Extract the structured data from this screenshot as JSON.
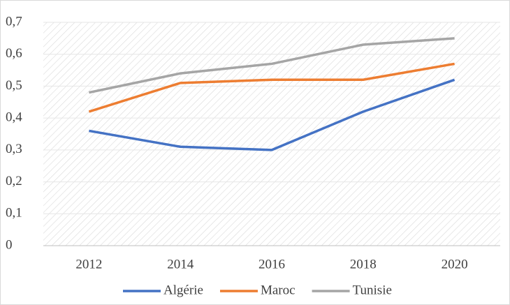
{
  "chart_data": {
    "type": "line",
    "categories": [
      "2012",
      "2014",
      "2016",
      "2018",
      "2020"
    ],
    "series": [
      {
        "name": "Algérie",
        "color": "#4472c4",
        "values": [
          0.36,
          0.31,
          0.3,
          0.42,
          0.52
        ]
      },
      {
        "name": "Maroc",
        "color": "#ed7d31",
        "values": [
          0.42,
          0.51,
          0.52,
          0.52,
          0.57
        ]
      },
      {
        "name": "Tunisie",
        "color": "#a5a5a5",
        "values": [
          0.48,
          0.54,
          0.57,
          0.63,
          0.65
        ]
      }
    ],
    "ylim": [
      0,
      0.7
    ],
    "yticks": [
      0,
      {
        "value": 0.1,
        "label": "0,1"
      },
      {
        "value": 0.2,
        "label": "0,2"
      },
      {
        "value": 0.3,
        "label": "0,3"
      },
      {
        "value": 0.4,
        "label": "0,4"
      },
      {
        "value": 0.5,
        "label": "0,5"
      },
      {
        "value": 0.6,
        "label": "0,6"
      },
      {
        "value": 0.7,
        "label": "0,7"
      }
    ],
    "grid": true,
    "legend": "bottom"
  }
}
